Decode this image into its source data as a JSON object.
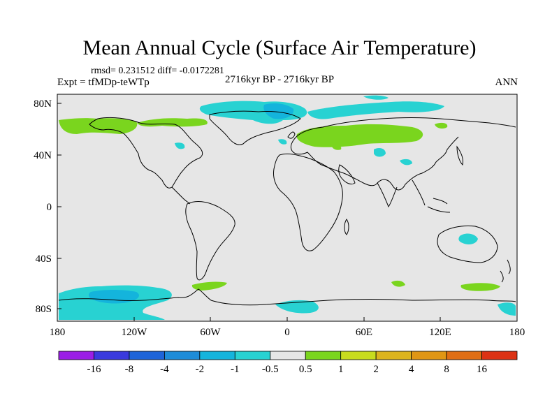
{
  "title": "Mean Annual Cycle (Surface Air Temperature)",
  "stats": "rmsd= 0.231512 diff= -0.0172281",
  "experiment": "Expt = tfMDp-teWTp",
  "period": "2716kyr BP - 2716kyr BP",
  "season": "ANN",
  "lat_labels": [
    "80N",
    "40N",
    "0",
    "40S",
    "80S"
  ],
  "lon_labels": [
    "180",
    "120W",
    "60W",
    "0",
    "60E",
    "120E",
    "180"
  ],
  "colorbar": {
    "labels": [
      "-16",
      "-8",
      "-4",
      "-2",
      "-1",
      "-0.5",
      "0.5",
      "1",
      "2",
      "4",
      "8",
      "16"
    ],
    "colors": [
      "#9b1ee6",
      "#3a3ade",
      "#1e64d8",
      "#1e8cd8",
      "#14b4dc",
      "#28d2d2",
      "#e6e6e6",
      "#7ad51e",
      "#c8dc1e",
      "#dcb41e",
      "#e09614",
      "#e06e14",
      "#dc3214"
    ]
  },
  "colors": {
    "background": "#e6e6e6",
    "coast": "#000000"
  }
}
